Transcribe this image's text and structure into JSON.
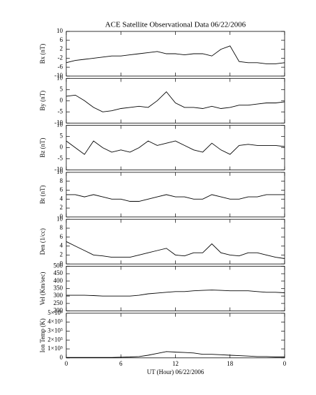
{
  "chart_data": [
    {
      "type": "line",
      "title": "ACE Satellite Observational Data   06/22/2006",
      "ylabel": "Bx (nT)",
      "x": [
        0,
        1,
        2,
        3,
        4,
        5,
        6,
        7,
        8,
        9,
        10,
        11,
        12,
        13,
        14,
        15,
        16,
        17,
        18,
        19,
        20,
        21,
        22,
        23,
        24
      ],
      "xlim": [
        0,
        24
      ],
      "values": [
        -4,
        -3,
        -2.5,
        -2,
        -1.5,
        -1,
        -1,
        -0.5,
        0,
        0.5,
        1,
        0,
        0,
        -0.5,
        0,
        0,
        -1,
        2,
        3.5,
        -3.5,
        -4,
        -4,
        -4.5,
        -4.5,
        -4
      ],
      "ylim": [
        -10,
        10
      ],
      "yticks": [
        -10,
        -6,
        -2,
        2,
        6,
        10
      ],
      "color": "#000000"
    },
    {
      "type": "line",
      "ylabel": "By (nT)",
      "x": [
        0,
        1,
        2,
        3,
        4,
        5,
        6,
        7,
        8,
        9,
        10,
        11,
        12,
        13,
        14,
        15,
        16,
        17,
        18,
        19,
        20,
        21,
        22,
        23,
        24
      ],
      "xlim": [
        0,
        24
      ],
      "values": [
        2,
        2.5,
        0,
        -3,
        -5,
        -4.5,
        -3.5,
        -3,
        -2.5,
        -3,
        0,
        4,
        -1,
        -3,
        -3,
        -3.5,
        -2.5,
        -3.5,
        -3,
        -2,
        -2,
        -1.5,
        -1,
        -1,
        -0.5
      ],
      "ylim": [
        -10,
        10
      ],
      "yticks": [
        -10,
        -5,
        0,
        5,
        10
      ],
      "color": "#000000"
    },
    {
      "type": "line",
      "ylabel": "Bz (nT)",
      "x": [
        0,
        1,
        2,
        3,
        4,
        5,
        6,
        7,
        8,
        9,
        10,
        11,
        12,
        13,
        14,
        15,
        16,
        17,
        18,
        19,
        20,
        21,
        22,
        23,
        24
      ],
      "xlim": [
        0,
        24
      ],
      "values": [
        3,
        0,
        -3,
        3,
        0,
        -2,
        -1,
        -2,
        0,
        3,
        1,
        2,
        3,
        1,
        -1,
        -2,
        2,
        -1,
        -3,
        1,
        1.5,
        1,
        1,
        1,
        0.5
      ],
      "ylim": [
        -10,
        10
      ],
      "yticks": [
        -10,
        -5,
        0,
        5,
        10
      ],
      "color": "#000000"
    },
    {
      "type": "line",
      "ylabel": "Bt (nT)",
      "x": [
        0,
        1,
        2,
        3,
        4,
        5,
        6,
        7,
        8,
        9,
        10,
        11,
        12,
        13,
        14,
        15,
        16,
        17,
        18,
        19,
        20,
        21,
        22,
        23,
        24
      ],
      "xlim": [
        0,
        24
      ],
      "values": [
        5,
        5,
        4.5,
        5,
        4.5,
        4,
        4,
        3.5,
        3.5,
        4,
        4.5,
        5,
        4.5,
        4.5,
        4,
        4,
        5,
        4.5,
        4,
        4,
        4.5,
        4.5,
        5,
        5,
        5
      ],
      "ylim": [
        0,
        10
      ],
      "yticks": [
        0,
        2,
        4,
        6,
        8,
        10
      ],
      "color": "#000000"
    },
    {
      "type": "line",
      "ylabel": "Den (1/cc)",
      "x": [
        0,
        1,
        2,
        3,
        4,
        5,
        6,
        7,
        8,
        9,
        10,
        11,
        12,
        13,
        14,
        15,
        16,
        17,
        18,
        19,
        20,
        21,
        22,
        23,
        24
      ],
      "xlim": [
        0,
        24
      ],
      "values": [
        5,
        4,
        3,
        2,
        1.8,
        1.5,
        1.5,
        1.5,
        2,
        2.5,
        3,
        3.5,
        2,
        1.8,
        2.5,
        2.5,
        4.5,
        2.5,
        2,
        1.8,
        2.5,
        2.5,
        2,
        1.5,
        1.2
      ],
      "ylim": [
        0,
        10
      ],
      "yticks": [
        0,
        2,
        4,
        6,
        8,
        10
      ],
      "color": "#000000"
    },
    {
      "type": "line",
      "ylabel": "Vel (Km/sec)",
      "x": [
        0,
        1,
        2,
        3,
        4,
        5,
        6,
        7,
        8,
        9,
        10,
        11,
        12,
        13,
        14,
        15,
        16,
        17,
        18,
        19,
        20,
        21,
        22,
        23,
        24
      ],
      "xlim": [
        0,
        24
      ],
      "values": [
        305,
        305,
        305,
        303,
        300,
        300,
        300,
        300,
        305,
        315,
        320,
        325,
        330,
        330,
        335,
        338,
        340,
        338,
        335,
        335,
        335,
        330,
        325,
        325,
        322
      ],
      "ylim": [
        200,
        500
      ],
      "yticks": [
        200,
        250,
        300,
        350,
        400,
        450,
        500
      ],
      "color": "#000000"
    },
    {
      "type": "line",
      "ylabel": "Ion Temp (K)",
      "xlabel": "UT (Hour)   06/22/2006",
      "x": [
        0,
        1,
        2,
        3,
        4,
        5,
        6,
        7,
        8,
        9,
        10,
        11,
        12,
        13,
        14,
        15,
        16,
        17,
        18,
        19,
        20,
        21,
        22,
        23,
        24
      ],
      "xlim": [
        0,
        24
      ],
      "xticks": [
        0,
        6,
        12,
        18,
        {
          "value": 24,
          "label": "0"
        }
      ],
      "values": [
        5000,
        5000,
        5000,
        5000,
        5000,
        5000,
        8000,
        10000,
        15000,
        30000,
        50000,
        70000,
        65000,
        60000,
        55000,
        40000,
        40000,
        35000,
        30000,
        25000,
        20000,
        15000,
        15000,
        10000,
        10000
      ],
      "ylim": [
        0,
        500000
      ],
      "yticks": [
        0,
        {
          "value": 100000,
          "label": "1×10⁵"
        },
        {
          "value": 200000,
          "label": "2×10⁵"
        },
        {
          "value": 300000,
          "label": "3×10⁵"
        },
        {
          "value": 400000,
          "label": "4×10⁵"
        },
        {
          "value": 500000,
          "label": "5×10⁵"
        }
      ],
      "color": "#000000"
    }
  ]
}
